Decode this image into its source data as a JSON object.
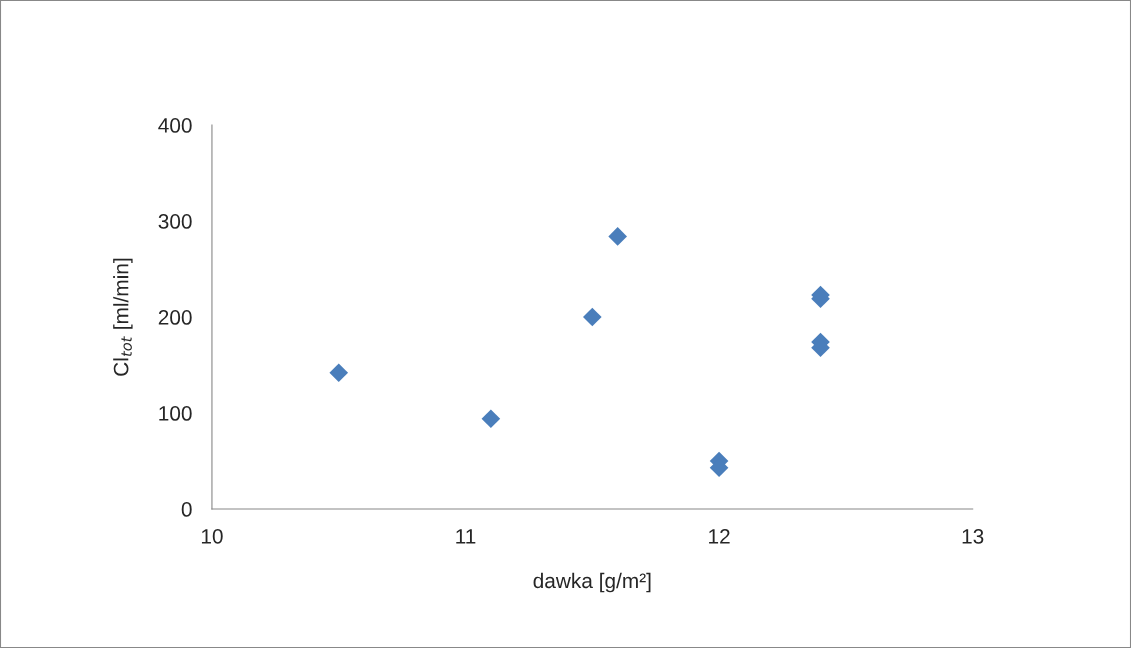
{
  "chart_data": {
    "type": "scatter",
    "xlabel": "dawka [g/m²]",
    "ylabel": "Cl$_{tot}$ [ml/min]",
    "x": [
      10.5,
      11.1,
      11.5,
      11.6,
      12,
      12,
      12.4,
      12.4,
      12.4,
      12.4
    ],
    "values": [
      142,
      94,
      200,
      284,
      50,
      43,
      223,
      219,
      174,
      168
    ],
    "color": "#4a7ebb",
    "marker": "diamond",
    "xlim": [
      10,
      13
    ],
    "xticks": [
      10,
      11,
      12,
      13
    ],
    "ylim": [
      0,
      400
    ],
    "yticks": [
      0,
      100,
      200,
      300,
      400
    ],
    "grid": false,
    "legend": false
  }
}
